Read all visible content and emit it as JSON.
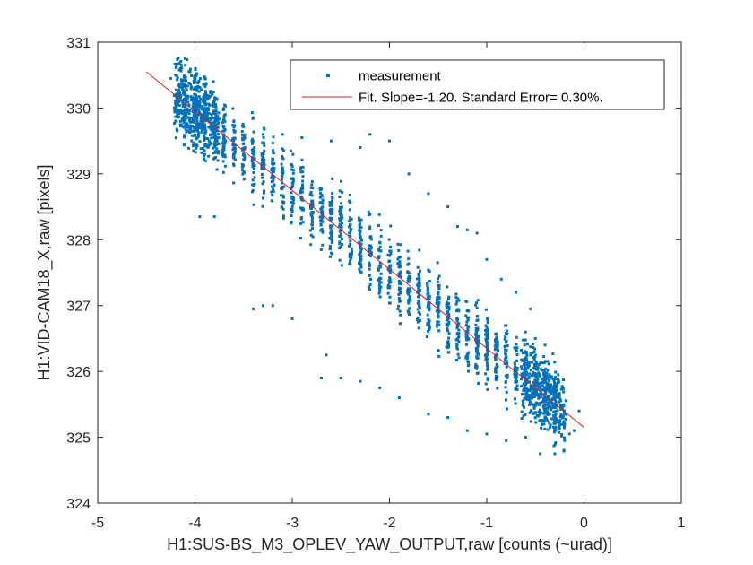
{
  "chart_data": {
    "type": "scatter",
    "xlabel": "H1:SUS-BS_M3_OPLEV_YAW_OUTPUT,raw [counts (~urad)]",
    "ylabel": "H1:VID-CAM18_X,raw [pixels]",
    "xlim": [
      -5,
      1
    ],
    "ylim": [
      324,
      331
    ],
    "xticks": [
      -5,
      -4,
      -3,
      -2,
      -1,
      0,
      1
    ],
    "yticks": [
      324,
      325,
      326,
      327,
      328,
      329,
      330,
      331
    ],
    "grid": false,
    "legend_position": "top-right",
    "series": [
      {
        "name": "measurement",
        "marker": "square",
        "color": "#0072BD",
        "trend": {
          "x_start": -4.2,
          "x_end": -0.2,
          "y_at_start": 330.2,
          "y_at_end": 325.4,
          "spread": 0.5
        },
        "points": [
          [
            -4.25,
            330.45
          ],
          [
            -4.2,
            330.5
          ],
          [
            -4.15,
            330.6
          ],
          [
            -4.1,
            330.65
          ],
          [
            -4.05,
            330.55
          ],
          [
            -4.2,
            330.1
          ],
          [
            -4.1,
            329.95
          ],
          [
            -4.2,
            329.8
          ],
          [
            -4.0,
            329.9
          ],
          [
            -3.9,
            330.2
          ],
          [
            -3.8,
            330.1
          ],
          [
            -3.7,
            329.7
          ],
          [
            -3.95,
            328.35
          ],
          [
            -3.8,
            328.35
          ],
          [
            -3.3,
            329.6
          ],
          [
            -3.1,
            329.6
          ],
          [
            -2.9,
            329.55
          ],
          [
            -2.6,
            329.5
          ],
          [
            -2.3,
            329.4
          ],
          [
            -2.2,
            329.6
          ],
          [
            -2.0,
            329.5
          ],
          [
            -1.8,
            329.0
          ],
          [
            -1.6,
            328.7
          ],
          [
            -1.4,
            328.5
          ],
          [
            -1.3,
            328.2
          ],
          [
            -1.2,
            328.15
          ],
          [
            -1.1,
            328.1
          ],
          [
            -1.0,
            327.7
          ],
          [
            -0.85,
            327.4
          ],
          [
            -0.7,
            327.2
          ],
          [
            -0.55,
            326.95
          ],
          [
            -0.5,
            326.5
          ],
          [
            -0.4,
            326.4
          ],
          [
            -3.3,
            327.0
          ],
          [
            -3.2,
            327.0
          ],
          [
            -3.4,
            326.95
          ],
          [
            -3.0,
            326.8
          ],
          [
            -2.65,
            326.25
          ],
          [
            -2.7,
            325.9
          ],
          [
            -2.5,
            325.9
          ],
          [
            -2.3,
            325.85
          ],
          [
            -2.1,
            325.75
          ],
          [
            -1.9,
            325.6
          ],
          [
            -1.6,
            325.35
          ],
          [
            -1.4,
            325.3
          ],
          [
            -1.2,
            325.1
          ],
          [
            -1.0,
            325.05
          ],
          [
            -0.8,
            324.95
          ],
          [
            -0.6,
            325.0
          ],
          [
            -0.45,
            324.75
          ],
          [
            -0.3,
            324.75
          ],
          [
            -0.2,
            324.95
          ],
          [
            -0.1,
            325.1
          ],
          [
            -0.05,
            325.4
          ],
          [
            -0.15,
            325.05
          ],
          [
            -0.2,
            325.2
          ]
        ]
      },
      {
        "name": "Fit.  Slope=-1.20. Standard Error= 0.30%.",
        "type": "line",
        "color": "#D9231F",
        "x": [
          -4.5,
          0.0
        ],
        "y": [
          330.55,
          325.15
        ]
      }
    ]
  }
}
